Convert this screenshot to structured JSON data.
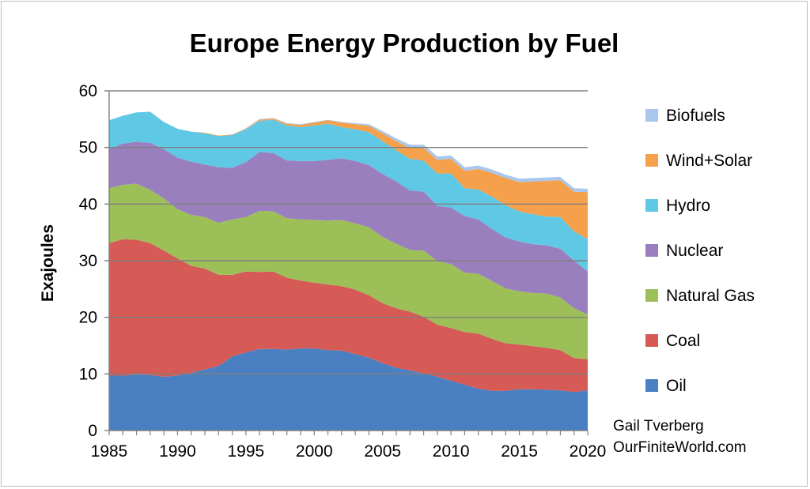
{
  "chart_data": {
    "type": "area",
    "stacked": true,
    "title": "Europe Energy Production by Fuel",
    "ylabel": "Exajoules",
    "xlabel": "",
    "ylim": [
      0,
      60
    ],
    "yticks": [
      0,
      10,
      20,
      30,
      40,
      50,
      60
    ],
    "xlim": [
      1985,
      2020
    ],
    "xticks": [
      1985,
      1990,
      1995,
      2000,
      2005,
      2010,
      2015,
      2020
    ],
    "grid": "horizontal",
    "legend_position": "right",
    "credit_lines": [
      "Gail Tverberg",
      "OurFiniteWorld.com"
    ],
    "x": [
      1985,
      1986,
      1987,
      1988,
      1989,
      1990,
      1991,
      1992,
      1993,
      1994,
      1995,
      1996,
      1997,
      1998,
      1999,
      2000,
      2001,
      2002,
      2003,
      2004,
      2005,
      2006,
      2007,
      2008,
      2009,
      2010,
      2011,
      2012,
      2013,
      2014,
      2015,
      2016,
      2017,
      2018,
      2019,
      2020
    ],
    "series": [
      {
        "name": "Oil",
        "color": "#4a7fc1",
        "values": [
          9.7,
          9.7,
          9.9,
          9.8,
          9.5,
          9.7,
          10.2,
          10.8,
          11.4,
          13.1,
          13.8,
          14.4,
          14.4,
          14.3,
          14.5,
          14.5,
          14.2,
          14.1,
          13.5,
          12.9,
          11.9,
          11.1,
          10.6,
          10.1,
          9.5,
          8.8,
          8.1,
          7.4,
          7.0,
          7.0,
          7.3,
          7.3,
          7.2,
          7.1,
          6.8,
          7.1
        ]
      },
      {
        "name": "Coal",
        "color": "#d65a55",
        "values": [
          23.4,
          24.1,
          23.8,
          23.3,
          22.3,
          20.7,
          18.9,
          17.8,
          16.1,
          14.4,
          14.3,
          13.6,
          13.7,
          12.7,
          12.0,
          11.6,
          11.6,
          11.4,
          11.4,
          11.0,
          10.6,
          10.5,
          10.4,
          10.0,
          9.2,
          9.3,
          9.3,
          9.7,
          9.2,
          8.4,
          7.9,
          7.6,
          7.4,
          7.1,
          6.0,
          5.5
        ]
      },
      {
        "name": "Natural Gas",
        "color": "#9cbf58",
        "values": [
          9.7,
          9.6,
          9.9,
          9.4,
          9.2,
          8.7,
          9.0,
          9.1,
          9.2,
          9.8,
          9.6,
          10.8,
          10.6,
          10.5,
          10.8,
          11.1,
          11.3,
          11.7,
          11.7,
          12.0,
          11.7,
          11.4,
          10.9,
          11.7,
          11.2,
          11.3,
          10.5,
          10.6,
          10.2,
          9.7,
          9.4,
          9.4,
          9.6,
          9.3,
          8.8,
          7.9
        ]
      },
      {
        "name": "Nuclear",
        "color": "#9a7fbe",
        "values": [
          6.9,
          7.3,
          7.4,
          8.3,
          8.7,
          9.1,
          9.4,
          9.3,
          9.8,
          9.1,
          9.7,
          10.4,
          10.3,
          10.2,
          10.3,
          10.4,
          10.7,
          10.9,
          11.0,
          11.0,
          11.1,
          11.0,
          10.5,
          10.4,
          9.8,
          10.0,
          10.0,
          9.6,
          9.2,
          9.0,
          8.8,
          8.6,
          8.5,
          8.6,
          8.4,
          7.6
        ]
      },
      {
        "name": "Hydro",
        "color": "#5fc8e5",
        "values": [
          5.1,
          4.9,
          5.2,
          5.5,
          4.8,
          5.1,
          5.3,
          5.5,
          5.5,
          5.8,
          5.8,
          5.5,
          5.9,
          6.2,
          6.0,
          6.3,
          6.4,
          5.5,
          5.6,
          5.8,
          5.8,
          5.5,
          5.6,
          5.5,
          5.7,
          6.0,
          4.9,
          5.3,
          5.7,
          5.7,
          5.3,
          5.3,
          5.1,
          5.6,
          5.2,
          5.7
        ]
      },
      {
        "name": "Wind+Solar",
        "color": "#f5a04a",
        "values": [
          0.0,
          0.0,
          0.0,
          0.0,
          0.0,
          0.0,
          0.0,
          0.1,
          0.1,
          0.1,
          0.1,
          0.2,
          0.2,
          0.3,
          0.4,
          0.5,
          0.6,
          0.8,
          0.9,
          1.1,
          1.4,
          1.6,
          1.9,
          2.2,
          2.4,
          2.6,
          3.1,
          3.6,
          4.2,
          4.8,
          5.2,
          5.8,
          6.3,
          6.5,
          7.0,
          8.3
        ]
      },
      {
        "name": "Biofuels",
        "color": "#a9c7ec",
        "values": [
          0.0,
          0.0,
          0.0,
          0.0,
          0.0,
          0.0,
          0.0,
          0.0,
          0.0,
          0.0,
          0.1,
          0.1,
          0.1,
          0.1,
          0.1,
          0.1,
          0.1,
          0.1,
          0.2,
          0.3,
          0.4,
          0.5,
          0.6,
          0.6,
          0.6,
          0.6,
          0.6,
          0.6,
          0.6,
          0.6,
          0.6,
          0.6,
          0.6,
          0.6,
          0.6,
          0.6
        ]
      }
    ],
    "legend_order": [
      "Biofuels",
      "Wind+Solar",
      "Hydro",
      "Nuclear",
      "Natural Gas",
      "Coal",
      "Oil"
    ]
  }
}
